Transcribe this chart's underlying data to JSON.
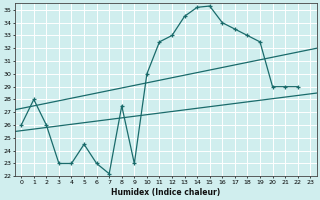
{
  "xlabel": "Humidex (Indice chaleur)",
  "xlim": [
    -0.5,
    23.5
  ],
  "ylim": [
    22,
    35.5
  ],
  "xticks": [
    0,
    1,
    2,
    3,
    4,
    5,
    6,
    7,
    8,
    9,
    10,
    11,
    12,
    13,
    14,
    15,
    16,
    17,
    18,
    19,
    20,
    21,
    22,
    23
  ],
  "yticks": [
    22,
    23,
    24,
    25,
    26,
    27,
    28,
    29,
    30,
    31,
    32,
    33,
    34,
    35
  ],
  "bg_color": "#d0eeee",
  "grid_color": "#b0d8d8",
  "line_color": "#1a6b6b",
  "curve_x": [
    0,
    1,
    2,
    3,
    4,
    5,
    6,
    7,
    8,
    9,
    10,
    11,
    12,
    13,
    14,
    15,
    16,
    17,
    18,
    19,
    20,
    21,
    22
  ],
  "curve_y": [
    26,
    28,
    26,
    23,
    23,
    24.5,
    23,
    22.2,
    27.5,
    23,
    30,
    32.5,
    33,
    34.5,
    35.2,
    35.3,
    34,
    33.5,
    33,
    32.5,
    29,
    29,
    29
  ],
  "line2_x": [
    -0.5,
    23.5
  ],
  "line2_y": [
    25.5,
    28.5
  ],
  "line3_x": [
    -0.5,
    23.5
  ],
  "line3_y": [
    27.2,
    32.0
  ]
}
